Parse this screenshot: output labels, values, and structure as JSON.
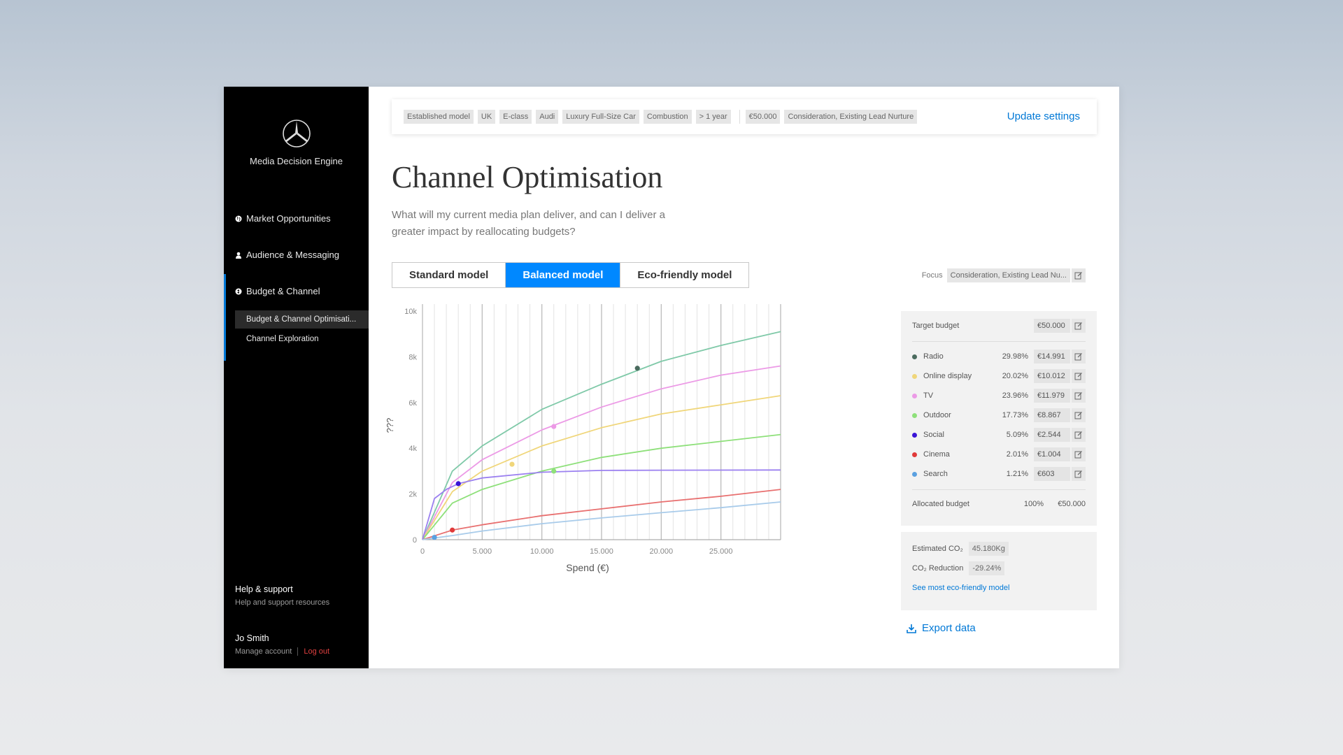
{
  "app": {
    "name": "Media Decision Engine"
  },
  "nav": {
    "items": [
      {
        "label": "Market Opportunities"
      },
      {
        "label": "Audience & Messaging"
      },
      {
        "label": "Budget & Channel"
      }
    ],
    "sub_items": [
      {
        "label": "Budget & Channel Optimisati..."
      },
      {
        "label": "Channel Exploration"
      }
    ],
    "help_title": "Help & support",
    "help_sub": "Help and support resources",
    "user_name": "Jo Smith",
    "manage": "Manage account",
    "logout": "Log out"
  },
  "filters": {
    "chips": [
      "Established model",
      "UK",
      "E-class",
      "Audi",
      "Luxury Full-Size Car",
      "Combustion",
      "> 1 year"
    ],
    "chips2": [
      "€50.000",
      "Consideration, Existing Lead Nurture"
    ],
    "update": "Update settings"
  },
  "page": {
    "title": "Channel Optimisation",
    "desc": "What will my current media plan deliver, and can I deliver a greater impact by reallocating budgets?"
  },
  "models": [
    {
      "label": "Standard model"
    },
    {
      "label": "Balanced model",
      "active": true
    },
    {
      "label": "Eco-friendly model"
    }
  ],
  "focus": {
    "label": "Focus",
    "value": "Consideration, Existing Lead Nu..."
  },
  "budget": {
    "target_label": "Target budget",
    "target_value": "€50.000",
    "channels": [
      {
        "name": "Radio",
        "pct": "29.98%",
        "value": "€14.991",
        "color": "#4a6b5e"
      },
      {
        "name": "Online display",
        "pct": "20.02%",
        "value": "€10.012",
        "color": "#f0d67a"
      },
      {
        "name": "TV",
        "pct": "23.96%",
        "value": "€11.979",
        "color": "#ec9ae6"
      },
      {
        "name": "Outdoor",
        "pct": "17.73%",
        "value": "€8.867",
        "color": "#8ee07a"
      },
      {
        "name": "Social",
        "pct": "5.09%",
        "value": "€2.544",
        "color": "#3a14d6"
      },
      {
        "name": "Cinema",
        "pct": "2.01%",
        "value": "€1.004",
        "color": "#e03a3a"
      },
      {
        "name": "Search",
        "pct": "1.21%",
        "value": "€603",
        "color": "#5aa0e0"
      }
    ],
    "allocated_label": "Allocated budget",
    "allocated_pct": "100%",
    "allocated_value": "€50.000"
  },
  "co2": {
    "est_label": "Estimated CO₂",
    "est_value": "45.180Kg",
    "red_label": "CO₂ Reduction",
    "red_value": "-29.24%",
    "link": "See most eco-friendly model"
  },
  "export_label": "Export data",
  "chart_data": {
    "type": "line",
    "xlabel": "Spend (€)",
    "ylabel": "???",
    "xlim": [
      0,
      30000
    ],
    "ylim": [
      0,
      10000
    ],
    "xticks": [
      "0",
      "5.000",
      "10.000",
      "15.000",
      "20.000",
      "25.000"
    ],
    "yticks": [
      "0",
      "2k",
      "4k",
      "6k",
      "8k",
      "10k"
    ],
    "grid": true,
    "series": [
      {
        "color": "#7fc9a8",
        "x": [
          0,
          2500,
          5000,
          10000,
          15000,
          20000,
          25000,
          30000
        ],
        "y": [
          0,
          3000,
          4100,
          5700,
          6800,
          7800,
          8500,
          9100
        ],
        "marker": {
          "x": 18000,
          "y": 7500,
          "color": "#4a6b5e"
        }
      },
      {
        "color": "#ec9ae6",
        "x": [
          0,
          2500,
          5000,
          10000,
          15000,
          20000,
          25000,
          30000
        ],
        "y": [
          0,
          2500,
          3500,
          4800,
          5800,
          6600,
          7200,
          7600
        ],
        "marker": {
          "x": 11000,
          "y": 4950,
          "color": "#ec9ae6"
        }
      },
      {
        "color": "#f0d67a",
        "x": [
          0,
          2500,
          5000,
          10000,
          15000,
          20000,
          25000,
          30000
        ],
        "y": [
          0,
          2100,
          3000,
          4100,
          4900,
          5500,
          5900,
          6300
        ],
        "marker": {
          "x": 7500,
          "y": 3300,
          "color": "#f0d67a"
        }
      },
      {
        "color": "#8ee07a",
        "x": [
          0,
          2500,
          5000,
          10000,
          15000,
          20000,
          25000,
          30000
        ],
        "y": [
          0,
          1600,
          2200,
          3000,
          3600,
          4000,
          4300,
          4600
        ],
        "marker": {
          "x": 11000,
          "y": 3000,
          "color": "#8ee07a"
        }
      },
      {
        "color": "#9b80f0",
        "x": [
          0,
          1000,
          2000,
          3000,
          5000,
          10000,
          15000,
          20000,
          30000
        ],
        "y": [
          0,
          1800,
          2200,
          2450,
          2700,
          2950,
          3030,
          3040,
          3050
        ],
        "marker": {
          "x": 3000,
          "y": 2450,
          "color": "#3a14d6"
        }
      },
      {
        "color": "#e87070",
        "x": [
          0,
          2500,
          5000,
          10000,
          15000,
          20000,
          25000,
          30000
        ],
        "y": [
          0,
          420,
          650,
          1050,
          1350,
          1650,
          1900,
          2200
        ],
        "marker": {
          "x": 2500,
          "y": 420,
          "color": "#e03a3a"
        }
      },
      {
        "color": "#a8cbea",
        "x": [
          0,
          2500,
          5000,
          10000,
          15000,
          20000,
          25000,
          30000
        ],
        "y": [
          0,
          180,
          380,
          700,
          950,
          1180,
          1400,
          1650
        ],
        "marker": {
          "x": 1000,
          "y": 100,
          "color": "#5aa0e0"
        }
      }
    ]
  }
}
